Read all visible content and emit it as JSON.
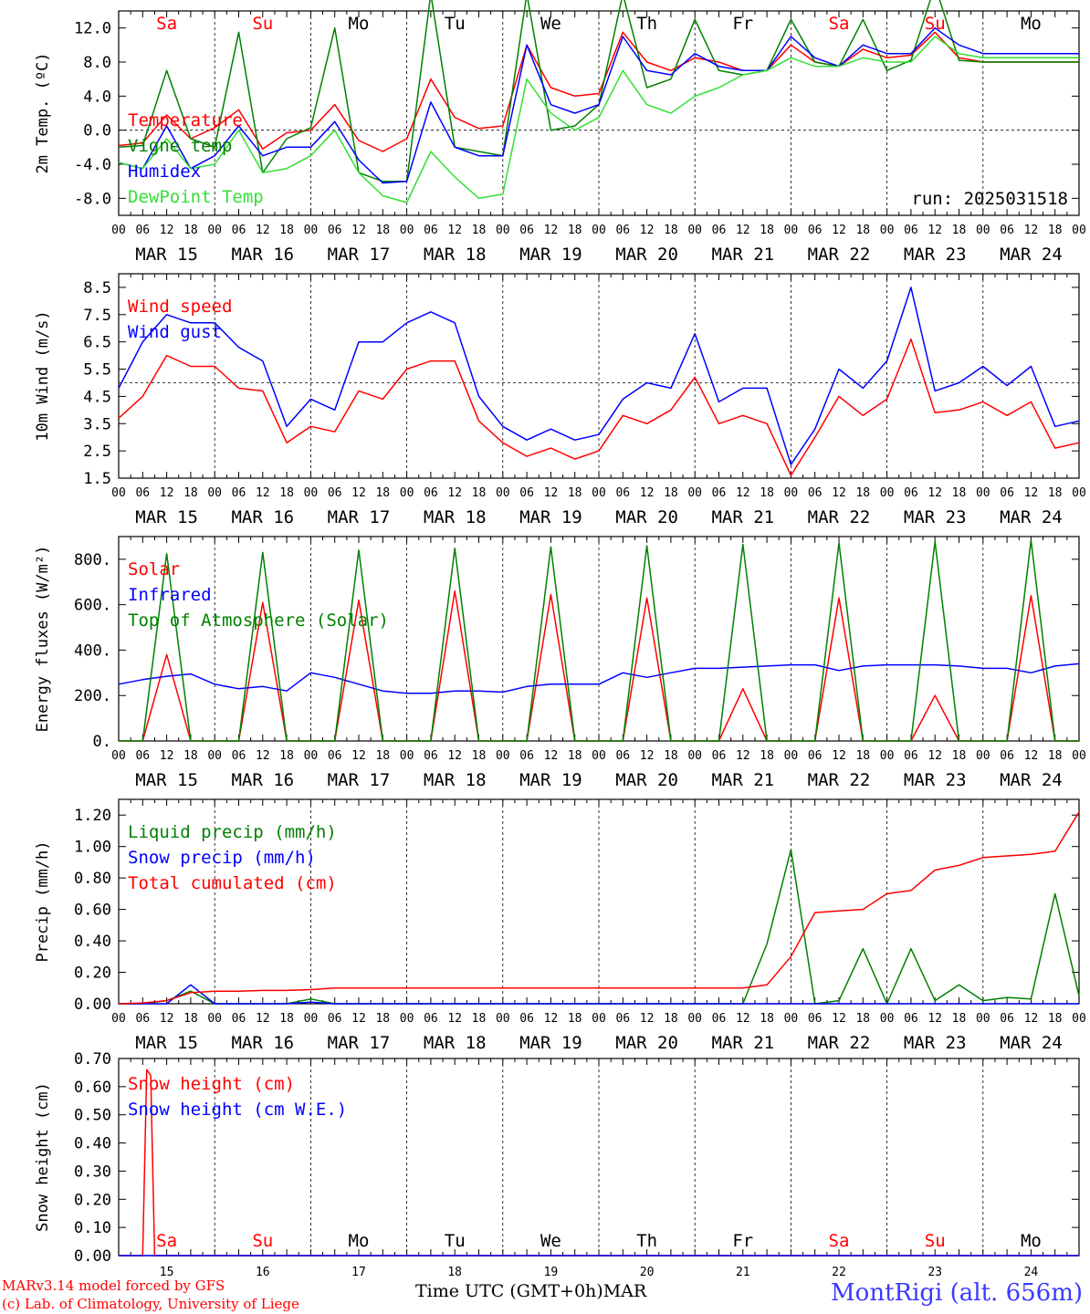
{
  "colors": {
    "red": "#ff0000",
    "blue": "#0000ff",
    "green": "#008000",
    "lightgreen": "#33e033",
    "weekend": "#ff0000",
    "weekday": "#000000"
  },
  "header_days": [
    "Sa",
    "Su",
    "Mo",
    "Tu",
    "We",
    "Th",
    "Fr",
    "Sa",
    "Su",
    "Mo"
  ],
  "weekend_days": [
    0,
    1,
    7,
    8
  ],
  "date_labels": [
    "MAR 15",
    "MAR 16",
    "MAR 17",
    "MAR 18",
    "MAR 19",
    "MAR 20",
    "MAR 21",
    "MAR 22",
    "MAR 23",
    "MAR 24"
  ],
  "hour_ticks": [
    "00",
    "06",
    "12",
    "18"
  ],
  "bottom_day_numbers": [
    "15",
    "16",
    "17",
    "18",
    "19",
    "20",
    "21",
    "22",
    "23",
    "24"
  ],
  "footer": {
    "credit_line1": "MARv3.14 model forced by GFS",
    "credit_line2": "(c) Lab. of Climatology, University of Liege",
    "x_title": "Time UTC (GMT+0h)",
    "month": "MAR",
    "station": "MontRigi (alt. 656m)"
  },
  "chart_data": [
    {
      "type": "line",
      "ylabel": "2m Temp. (ºC)",
      "run_label": "run: 2025031518",
      "ylim": [
        -10,
        14
      ],
      "yticks": [
        "12.0",
        "8.0",
        "4.0",
        "0.0",
        "-4.0",
        "-8.0"
      ],
      "ytick_values": [
        12,
        8,
        4,
        0,
        -4,
        -8
      ],
      "ref_line": 0,
      "x_hours": [
        0,
        6,
        12,
        18,
        24,
        30,
        36,
        42,
        48,
        54,
        60,
        66,
        72,
        78,
        84,
        90,
        96,
        102,
        108,
        114,
        120,
        126,
        132,
        138,
        144,
        150,
        156,
        162,
        168,
        174,
        180,
        186,
        192,
        198,
        204,
        210,
        216,
        222,
        228,
        234,
        240
      ],
      "series": [
        {
          "name": "Temperature",
          "color": "red",
          "values": [
            -1.8,
            -1.5,
            1.8,
            -1,
            0.3,
            2.4,
            -2.2,
            -0.3,
            0,
            3,
            -1.2,
            -2.5,
            -1,
            6,
            1.5,
            0.2,
            0.5,
            10,
            5,
            4,
            4.3,
            11.5,
            8,
            7,
            8.5,
            8,
            7,
            7,
            10,
            8,
            7.5,
            9.5,
            8.5,
            8.8,
            11.5,
            8.5,
            8,
            8,
            8,
            8,
            8
          ]
        },
        {
          "name": "Vigne temp",
          "color": "green",
          "values": [
            -2,
            -1.8,
            7,
            -1,
            -2,
            11.5,
            -5,
            -1,
            0.3,
            12,
            -5,
            -6,
            -6,
            16,
            -2,
            -2.5,
            -3,
            16,
            0,
            0.5,
            3,
            16,
            5,
            6,
            13,
            7,
            6.5,
            7,
            13,
            8,
            7.5,
            13,
            7,
            8.2,
            17,
            8.2,
            8,
            8,
            8,
            8,
            8
          ]
        },
        {
          "name": "Humidex",
          "color": "blue",
          "values": [
            -3.8,
            -4.5,
            0.5,
            -4.5,
            -3,
            0.5,
            -3,
            -2,
            -2,
            1,
            -3.5,
            -6.2,
            -6,
            3.3,
            -2,
            -3,
            -3,
            10,
            3,
            2,
            3,
            11,
            7,
            6.5,
            9,
            7.5,
            7,
            7,
            11,
            8.5,
            7.5,
            10,
            9,
            9,
            12,
            10,
            9,
            9,
            9,
            9,
            9
          ]
        },
        {
          "name": "DewPoint Temp",
          "color": "lightgreen",
          "values": [
            -3.8,
            -4.5,
            -1,
            -4.5,
            -4,
            0,
            -5,
            -4.5,
            -3,
            0,
            -5,
            -7.7,
            -8.5,
            -2.5,
            -5.5,
            -8,
            -7.5,
            6,
            2,
            0,
            1.5,
            7,
            3,
            2,
            4,
            5,
            6.5,
            7,
            8.5,
            7.5,
            7.5,
            8.5,
            8,
            8,
            11,
            9,
            8.5,
            8.5,
            8.5,
            8.5,
            8.5
          ]
        }
      ]
    },
    {
      "type": "line",
      "ylabel": "10m Wind (m/s)",
      "ylim": [
        1.5,
        9
      ],
      "yticks": [
        "8.5",
        "7.5",
        "6.5",
        "5.5",
        "4.5",
        "3.5",
        "2.5",
        "1.5"
      ],
      "ytick_values": [
        8.5,
        7.5,
        6.5,
        5.5,
        4.5,
        3.5,
        2.5,
        1.5
      ],
      "ref_line": 5,
      "x_hours": [
        0,
        6,
        12,
        18,
        24,
        30,
        36,
        42,
        48,
        54,
        60,
        66,
        72,
        78,
        84,
        90,
        96,
        102,
        108,
        114,
        120,
        126,
        132,
        138,
        144,
        150,
        156,
        162,
        168,
        174,
        180,
        186,
        192,
        198,
        204,
        210,
        216,
        222,
        228,
        234,
        240
      ],
      "series": [
        {
          "name": "Wind speed",
          "color": "red",
          "values": [
            3.7,
            4.5,
            6,
            5.6,
            5.6,
            4.8,
            4.7,
            2.8,
            3.4,
            3.2,
            4.7,
            4.4,
            5.5,
            5.8,
            5.8,
            3.6,
            2.8,
            2.3,
            2.6,
            2.2,
            2.5,
            3.8,
            3.5,
            4,
            5.2,
            3.5,
            3.8,
            3.5,
            1.6,
            3,
            4.5,
            3.8,
            4.4,
            6.6,
            3.9,
            4,
            4.3,
            3.8,
            4.3,
            2.6,
            2.8
          ]
        },
        {
          "name": "Wind gust",
          "color": "blue",
          "values": [
            4.8,
            6.5,
            7.5,
            7.2,
            7.2,
            6.3,
            5.8,
            3.4,
            4.4,
            4,
            6.5,
            6.5,
            7.2,
            7.6,
            7.2,
            4.5,
            3.4,
            2.9,
            3.3,
            2.9,
            3.1,
            4.4,
            5,
            4.8,
            6.8,
            4.3,
            4.8,
            4.8,
            2,
            3.3,
            5.5,
            4.8,
            5.8,
            8.5,
            4.7,
            5,
            5.6,
            4.9,
            5.6,
            3.4,
            3.6
          ]
        }
      ]
    },
    {
      "type": "line",
      "ylabel": "Energy fluxes (W/m²)",
      "ylim": [
        0,
        900
      ],
      "yticks": [
        "800.",
        "600.",
        "400.",
        "200.",
        "0."
      ],
      "ytick_values": [
        800,
        600,
        400,
        200,
        0
      ],
      "x_hours": [
        0,
        6,
        12,
        18,
        24,
        30,
        36,
        42,
        48,
        54,
        60,
        66,
        72,
        78,
        84,
        90,
        96,
        102,
        108,
        114,
        120,
        126,
        132,
        138,
        144,
        150,
        156,
        162,
        168,
        174,
        180,
        186,
        192,
        198,
        204,
        210,
        216,
        222,
        228,
        234,
        240
      ],
      "series": [
        {
          "name": "Solar",
          "color": "red",
          "values": [
            0,
            0,
            380,
            0,
            0,
            0,
            610,
            0,
            0,
            0,
            620,
            0,
            0,
            0,
            660,
            0,
            0,
            0,
            645,
            0,
            0,
            0,
            630,
            0,
            0,
            0,
            230,
            0,
            0,
            0,
            630,
            0,
            0,
            0,
            200,
            0,
            0,
            0,
            640,
            0,
            0
          ]
        },
        {
          "name": "Infrared",
          "color": "blue",
          "values": [
            250,
            270,
            285,
            295,
            250,
            230,
            240,
            220,
            300,
            280,
            250,
            220,
            210,
            210,
            220,
            220,
            215,
            240,
            250,
            250,
            250,
            300,
            280,
            300,
            320,
            320,
            325,
            330,
            335,
            335,
            310,
            330,
            335,
            335,
            335,
            330,
            320,
            320,
            300,
            330,
            340
          ]
        },
        {
          "name": "Top of Atmosphere (Solar)",
          "color": "green",
          "values": [
            0,
            0,
            825,
            0,
            0,
            0,
            830,
            0,
            0,
            0,
            840,
            0,
            0,
            0,
            848,
            0,
            0,
            0,
            855,
            0,
            0,
            0,
            860,
            0,
            0,
            0,
            866,
            0,
            0,
            0,
            872,
            0,
            0,
            0,
            878,
            0,
            0,
            0,
            884,
            0,
            0
          ]
        }
      ]
    },
    {
      "type": "line",
      "ylabel": "Precip (mm/h)",
      "ylim": [
        0,
        1.3
      ],
      "yticks": [
        "1.20",
        "1.00",
        "0.80",
        "0.60",
        "0.40",
        "0.20",
        "0.00"
      ],
      "ytick_values": [
        1.2,
        1.0,
        0.8,
        0.6,
        0.4,
        0.2,
        0.0
      ],
      "x_hours": [
        0,
        6,
        12,
        18,
        24,
        30,
        36,
        42,
        48,
        54,
        60,
        66,
        72,
        78,
        84,
        90,
        96,
        102,
        108,
        114,
        120,
        126,
        132,
        138,
        144,
        150,
        156,
        162,
        168,
        174,
        180,
        186,
        192,
        198,
        204,
        210,
        216,
        222,
        228,
        234,
        240
      ],
      "series": [
        {
          "name": "Liquid precip (mm/h)",
          "color": "green",
          "values": [
            0,
            0,
            0.02,
            0.08,
            0,
            0,
            0,
            0,
            0.03,
            0,
            0,
            0,
            0,
            0,
            0,
            0,
            0,
            0,
            0,
            0,
            0,
            0,
            0,
            0,
            0,
            0,
            0,
            0.38,
            0.98,
            0,
            0.02,
            0.35,
            0,
            0.35,
            0.02,
            0.12,
            0.02,
            0.04,
            0.03,
            0.7,
            0.05
          ]
        },
        {
          "name": "Snow precip (mm/h)",
          "color": "blue",
          "values": [
            0,
            0,
            0,
            0.12,
            0,
            0,
            0,
            0,
            0.01,
            0,
            0,
            0,
            0,
            0,
            0,
            0,
            0,
            0,
            0,
            0,
            0,
            0,
            0,
            0,
            0,
            0,
            0,
            0,
            0,
            0,
            0,
            0,
            0,
            0,
            0,
            0,
            0,
            0,
            0,
            0,
            0
          ]
        },
        {
          "name": "Total cumulated (cm)",
          "color": "red",
          "values": [
            0,
            0.005,
            0.02,
            0.07,
            0.08,
            0.08,
            0.085,
            0.085,
            0.09,
            0.1,
            0.1,
            0.1,
            0.1,
            0.1,
            0.1,
            0.1,
            0.1,
            0.1,
            0.1,
            0.1,
            0.1,
            0.1,
            0.1,
            0.1,
            0.1,
            0.1,
            0.1,
            0.12,
            0.3,
            0.58,
            0.59,
            0.6,
            0.7,
            0.72,
            0.85,
            0.88,
            0.93,
            0.94,
            0.95,
            0.97,
            1.22
          ]
        }
      ]
    },
    {
      "type": "line",
      "ylabel": "Snow height (cm)",
      "ylim": [
        0,
        0.7
      ],
      "yticks": [
        "0.70",
        "0.60",
        "0.50",
        "0.40",
        "0.30",
        "0.20",
        "0.10",
        "0.00"
      ],
      "ytick_values": [
        0.7,
        0.6,
        0.5,
        0.4,
        0.3,
        0.2,
        0.1,
        0.0
      ],
      "x_hours": [
        0,
        6,
        7,
        8,
        9,
        240
      ],
      "series": [
        {
          "name": "Snow height (cm)",
          "color": "red",
          "values": [
            0,
            0,
            0.66,
            0.64,
            0,
            0
          ]
        },
        {
          "name": "Snow height (cm W.E.)",
          "color": "blue",
          "values": [
            0,
            0,
            0,
            0,
            0,
            0
          ]
        }
      ]
    }
  ]
}
